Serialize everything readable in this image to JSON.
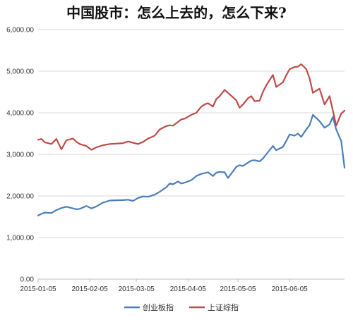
{
  "chart_data": {
    "type": "line",
    "title": "中国股市：怎么上去的，怎么下来?",
    "xlabel": "",
    "ylabel": "",
    "ylim": [
      0,
      6000
    ],
    "y_ticks": [
      0,
      1000,
      2000,
      3000,
      4000,
      5000,
      6000
    ],
    "y_tick_labels": [
      "0.00",
      "1,000.00",
      "2,000.00",
      "3,000.00",
      "4,000.00",
      "5,000.00",
      "6,000.00"
    ],
    "x_range": [
      "2015-01-05",
      "2015-07-08"
    ],
    "x_tick_labels": [
      "2015-01-05",
      "2015-02-05",
      "2015-03-05",
      "2015-04-05",
      "2015-05-05",
      "2015-06-05"
    ],
    "grid": "horizontal",
    "legend_position": "bottom",
    "series": [
      {
        "name": "创业板指",
        "color": "#4a7ebb",
        "x": [
          "2015-01-05",
          "2015-01-07",
          "2015-01-09",
          "2015-01-13",
          "2015-01-16",
          "2015-01-19",
          "2015-01-22",
          "2015-01-26",
          "2015-01-28",
          "2015-01-30",
          "2015-02-03",
          "2015-02-06",
          "2015-02-09",
          "2015-02-13",
          "2015-02-17",
          "2015-02-25",
          "2015-02-28",
          "2015-03-03",
          "2015-03-06",
          "2015-03-09",
          "2015-03-12",
          "2015-03-16",
          "2015-03-19",
          "2015-03-23",
          "2015-03-25",
          "2015-03-27",
          "2015-03-30",
          "2015-04-01",
          "2015-04-03",
          "2015-04-07",
          "2015-04-10",
          "2015-04-13",
          "2015-04-15",
          "2015-04-17",
          "2015-04-20",
          "2015-04-22",
          "2015-04-24",
          "2015-04-27",
          "2015-04-29",
          "2015-05-04",
          "2015-05-06",
          "2015-05-08",
          "2015-05-11",
          "2015-05-13",
          "2015-05-15",
          "2015-05-18",
          "2015-05-20",
          "2015-05-22",
          "2015-05-26",
          "2015-05-28",
          "2015-06-01",
          "2015-06-03",
          "2015-06-05",
          "2015-06-08",
          "2015-06-10",
          "2015-06-12",
          "2015-06-15",
          "2015-06-17",
          "2015-06-19",
          "2015-06-23",
          "2015-06-26",
          "2015-06-29",
          "2015-07-01",
          "2015-07-03",
          "2015-07-06",
          "2015-07-08"
        ],
        "values": [
          1530,
          1570,
          1600,
          1590,
          1660,
          1710,
          1740,
          1700,
          1680,
          1690,
          1760,
          1700,
          1750,
          1840,
          1890,
          1900,
          1910,
          1880,
          1950,
          1990,
          1980,
          2030,
          2100,
          2210,
          2300,
          2280,
          2350,
          2300,
          2320,
          2380,
          2480,
          2530,
          2550,
          2570,
          2480,
          2560,
          2580,
          2570,
          2430,
          2700,
          2740,
          2720,
          2800,
          2850,
          2860,
          2830,
          2900,
          3000,
          3200,
          3100,
          3180,
          3320,
          3480,
          3450,
          3500,
          3420,
          3600,
          3700,
          3950,
          3800,
          3640,
          3720,
          3900,
          3600,
          3320,
          2680
        ]
      },
      {
        "name": "上证综指",
        "color": "#be4b48",
        "x": [
          "2015-01-05",
          "2015-01-07",
          "2015-01-09",
          "2015-01-13",
          "2015-01-16",
          "2015-01-19",
          "2015-01-22",
          "2015-01-26",
          "2015-01-28",
          "2015-01-30",
          "2015-02-03",
          "2015-02-06",
          "2015-02-09",
          "2015-02-13",
          "2015-02-17",
          "2015-02-25",
          "2015-02-28",
          "2015-03-03",
          "2015-03-06",
          "2015-03-09",
          "2015-03-12",
          "2015-03-16",
          "2015-03-19",
          "2015-03-23",
          "2015-03-25",
          "2015-03-27",
          "2015-03-30",
          "2015-04-01",
          "2015-04-03",
          "2015-04-07",
          "2015-04-10",
          "2015-04-13",
          "2015-04-15",
          "2015-04-17",
          "2015-04-20",
          "2015-04-22",
          "2015-04-24",
          "2015-04-27",
          "2015-04-29",
          "2015-05-04",
          "2015-05-06",
          "2015-05-08",
          "2015-05-11",
          "2015-05-13",
          "2015-05-15",
          "2015-05-18",
          "2015-05-20",
          "2015-05-22",
          "2015-05-26",
          "2015-05-28",
          "2015-06-01",
          "2015-06-03",
          "2015-06-05",
          "2015-06-08",
          "2015-06-10",
          "2015-06-12",
          "2015-06-15",
          "2015-06-17",
          "2015-06-19",
          "2015-06-23",
          "2015-06-26",
          "2015-06-29",
          "2015-07-01",
          "2015-07-03",
          "2015-07-06",
          "2015-07-08"
        ],
        "values": [
          3350,
          3370,
          3290,
          3250,
          3370,
          3120,
          3340,
          3380,
          3300,
          3250,
          3200,
          3110,
          3170,
          3220,
          3250,
          3270,
          3310,
          3280,
          3250,
          3300,
          3380,
          3450,
          3600,
          3680,
          3700,
          3690,
          3780,
          3840,
          3860,
          3950,
          4000,
          4150,
          4200,
          4230,
          4150,
          4330,
          4400,
          4550,
          4480,
          4300,
          4120,
          4200,
          4350,
          4400,
          4280,
          4290,
          4500,
          4660,
          4910,
          4620,
          4730,
          4900,
          5050,
          5100,
          5110,
          5170,
          5050,
          4830,
          4480,
          4580,
          4200,
          4400,
          4050,
          3690,
          3980,
          4050
        ]
      }
    ]
  }
}
